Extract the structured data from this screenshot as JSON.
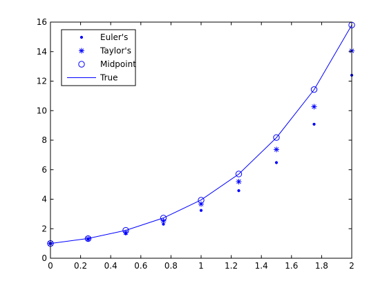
{
  "chart_data": {
    "type": "line",
    "title": "",
    "xlabel": "",
    "ylabel": "",
    "xlim": [
      0,
      2
    ],
    "ylim": [
      0,
      16
    ],
    "xticks": [
      "0",
      "0.2",
      "0.4",
      "0.6",
      "0.8",
      "1",
      "1.2",
      "1.4",
      "1.6",
      "1.8",
      "2"
    ],
    "yticks": [
      "0",
      "2",
      "4",
      "6",
      "8",
      "10",
      "12",
      "14",
      "16"
    ],
    "grid": false,
    "legend_position": "top-left",
    "series": [
      {
        "name": "Euler's",
        "marker": "dot",
        "color": "#0000ff",
        "x": [
          0,
          0.25,
          0.5,
          0.75,
          1,
          1.25,
          1.5,
          1.75,
          2
        ],
        "y": [
          1.0,
          1.28,
          1.66,
          2.31,
          3.24,
          4.58,
          6.48,
          9.08,
          12.4
        ]
      },
      {
        "name": "Taylor's",
        "marker": "asterisk",
        "color": "#0000ff",
        "x": [
          0,
          0.25,
          0.5,
          0.75,
          1,
          1.25,
          1.5,
          1.75,
          2
        ],
        "y": [
          1.0,
          1.31,
          1.74,
          2.53,
          3.67,
          5.19,
          7.37,
          10.27,
          14.05
        ]
      },
      {
        "name": "Midpoint",
        "marker": "circle",
        "color": "#0000ff",
        "x": [
          0,
          0.25,
          0.5,
          0.75,
          1,
          1.25,
          1.5,
          1.75,
          2
        ],
        "y": [
          1.0,
          1.33,
          1.89,
          2.72,
          3.93,
          5.71,
          8.18,
          11.43,
          15.8
        ]
      },
      {
        "name": "True",
        "marker": "line",
        "color": "#0000ff",
        "x": [
          0,
          0.25,
          0.5,
          0.75,
          1,
          1.25,
          1.5,
          1.75,
          2
        ],
        "y": [
          1.0,
          1.34,
          1.89,
          2.73,
          3.95,
          5.7,
          8.17,
          11.42,
          15.8
        ]
      }
    ]
  }
}
